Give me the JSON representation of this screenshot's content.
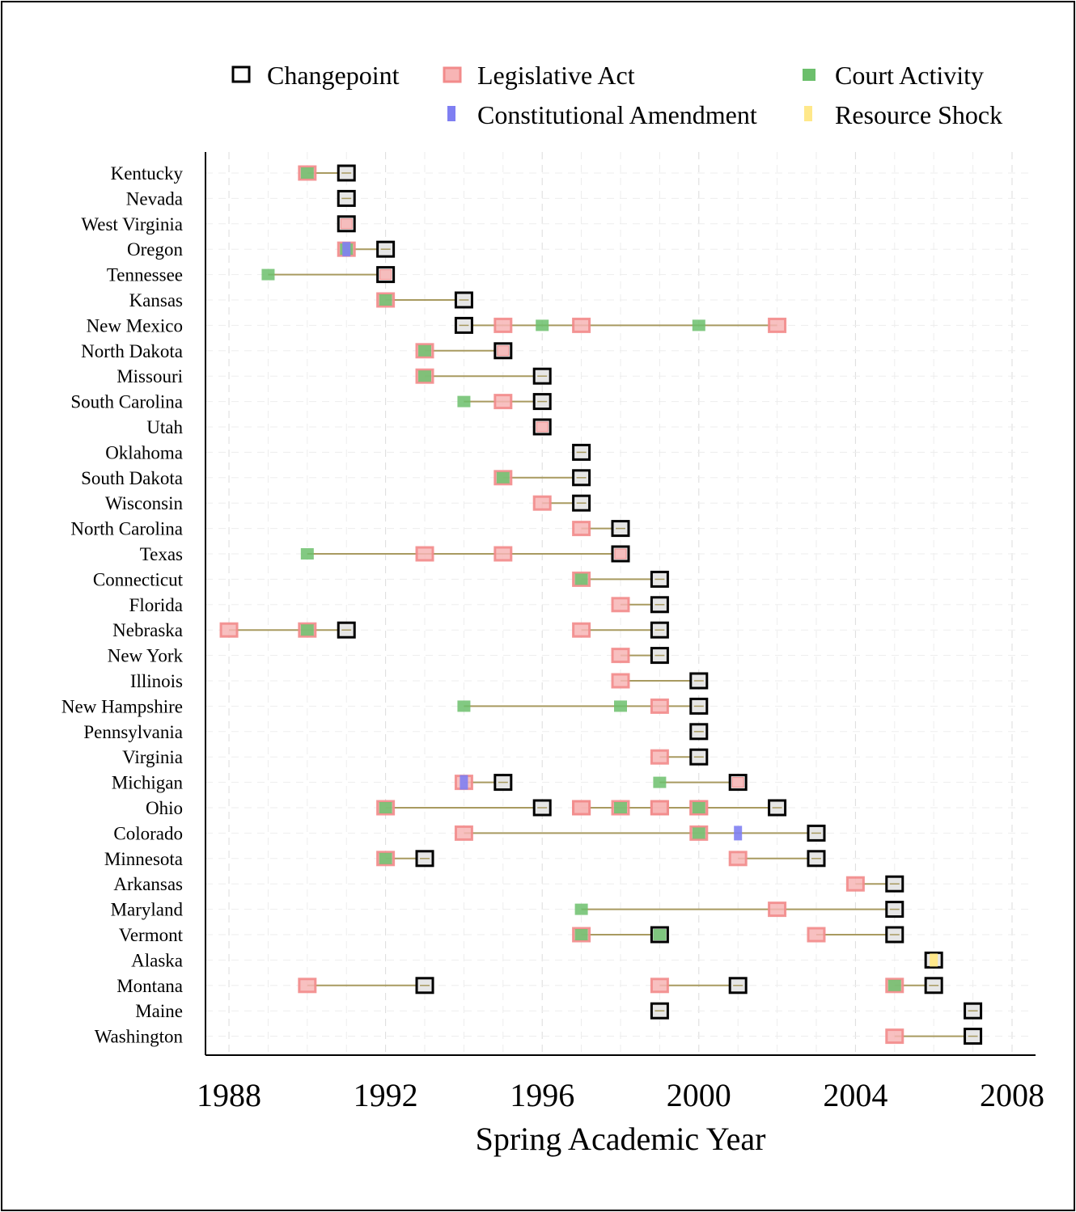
{
  "chart_data": {
    "type": "timeline",
    "xlabel": "Spring Academic Year",
    "ylabel": "",
    "xlim": [
      1987.4,
      2008.6
    ],
    "xticks": [
      1988,
      1992,
      1996,
      2000,
      2004,
      2008
    ],
    "grid": true,
    "legend_position": "top",
    "legend": [
      {
        "key": "changepoint",
        "label": "Changepoint"
      },
      {
        "key": "legislative",
        "label": "Legislative Act"
      },
      {
        "key": "court",
        "label": "Court Activity"
      },
      {
        "key": "amendment",
        "label": "Constitutional Amendment"
      },
      {
        "key": "shock",
        "label": "Resource Shock"
      }
    ],
    "colors": {
      "changepoint_border": "#000000",
      "changepoint_fill": "#e6e6e6",
      "legislative_border": "#f28b8b",
      "legislative_fill": "#f7b5b5",
      "court": "#6cbf6c",
      "amendment": "#7f7ff2",
      "shock": "#ffe88a",
      "connector": "#a89a60"
    },
    "states": [
      {
        "name": "Kentucky",
        "changepoints": [
          1991
        ],
        "legislative": [
          1990
        ],
        "court": [
          1990
        ],
        "amendment": [],
        "shock": []
      },
      {
        "name": "Nevada",
        "changepoints": [
          1991
        ],
        "legislative": [],
        "court": [],
        "amendment": [],
        "shock": []
      },
      {
        "name": "West Virginia",
        "changepoints": [
          1991
        ],
        "legislative": [
          1991
        ],
        "court": [],
        "amendment": [],
        "shock": []
      },
      {
        "name": "Oregon",
        "changepoints": [
          1992
        ],
        "legislative": [
          1991
        ],
        "court": [
          1991
        ],
        "amendment": [
          1991
        ],
        "shock": []
      },
      {
        "name": "Tennessee",
        "changepoints": [
          1992
        ],
        "legislative": [
          1992
        ],
        "court": [
          1989
        ],
        "amendment": [],
        "shock": []
      },
      {
        "name": "Kansas",
        "changepoints": [
          1994
        ],
        "legislative": [
          1992
        ],
        "court": [
          1992
        ],
        "amendment": [],
        "shock": []
      },
      {
        "name": "New Mexico",
        "changepoints": [
          1994
        ],
        "legislative": [
          1995,
          1997,
          2002
        ],
        "court": [
          1996,
          2000
        ],
        "amendment": [],
        "shock": []
      },
      {
        "name": "North Dakota",
        "changepoints": [
          1995
        ],
        "legislative": [
          1993,
          1995
        ],
        "court": [
          1993
        ],
        "amendment": [],
        "shock": []
      },
      {
        "name": "Missouri",
        "changepoints": [
          1996
        ],
        "legislative": [
          1993
        ],
        "court": [
          1993
        ],
        "amendment": [],
        "shock": []
      },
      {
        "name": "South Carolina",
        "changepoints": [
          1996
        ],
        "legislative": [
          1995
        ],
        "court": [
          1994
        ],
        "amendment": [],
        "shock": []
      },
      {
        "name": "Utah",
        "changepoints": [
          1996
        ],
        "legislative": [
          1996
        ],
        "court": [],
        "amendment": [],
        "shock": []
      },
      {
        "name": "Oklahoma",
        "changepoints": [
          1997
        ],
        "legislative": [],
        "court": [],
        "amendment": [],
        "shock": []
      },
      {
        "name": "South Dakota",
        "changepoints": [
          1997
        ],
        "legislative": [
          1995
        ],
        "court": [
          1995
        ],
        "amendment": [],
        "shock": []
      },
      {
        "name": "Wisconsin",
        "changepoints": [
          1997
        ],
        "legislative": [
          1996
        ],
        "court": [],
        "amendment": [],
        "shock": []
      },
      {
        "name": "North Carolina",
        "changepoints": [
          1998
        ],
        "legislative": [
          1997
        ],
        "court": [],
        "amendment": [],
        "shock": []
      },
      {
        "name": "Texas",
        "changepoints": [
          1998
        ],
        "legislative": [
          1993,
          1995,
          1998
        ],
        "court": [
          1990
        ],
        "amendment": [],
        "shock": []
      },
      {
        "name": "Connecticut",
        "changepoints": [
          1999
        ],
        "legislative": [
          1997
        ],
        "court": [
          1997
        ],
        "amendment": [],
        "shock": []
      },
      {
        "name": "Florida",
        "changepoints": [
          1999
        ],
        "legislative": [
          1998
        ],
        "court": [],
        "amendment": [],
        "shock": []
      },
      {
        "name": "Nebraska",
        "changepoints": [
          1991,
          1999
        ],
        "legislative": [
          1988,
          1990,
          1997
        ],
        "court": [
          1990
        ],
        "amendment": [],
        "shock": []
      },
      {
        "name": "New York",
        "changepoints": [
          1999
        ],
        "legislative": [
          1998
        ],
        "court": [],
        "amendment": [],
        "shock": []
      },
      {
        "name": "Illinois",
        "changepoints": [
          2000
        ],
        "legislative": [
          1998
        ],
        "court": [],
        "amendment": [],
        "shock": []
      },
      {
        "name": "New Hampshire",
        "changepoints": [
          2000
        ],
        "legislative": [
          1999
        ],
        "court": [
          1994,
          1998
        ],
        "amendment": [],
        "shock": []
      },
      {
        "name": "Pennsylvania",
        "changepoints": [
          2000
        ],
        "legislative": [],
        "court": [],
        "amendment": [],
        "shock": []
      },
      {
        "name": "Virginia",
        "changepoints": [
          2000
        ],
        "legislative": [
          1999
        ],
        "court": [],
        "amendment": [],
        "shock": []
      },
      {
        "name": "Michigan",
        "changepoints": [
          1995,
          2001
        ],
        "legislative": [
          1994,
          2001
        ],
        "court": [
          1999
        ],
        "amendment": [
          1994
        ],
        "shock": []
      },
      {
        "name": "Ohio",
        "changepoints": [
          1996,
          2002
        ],
        "legislative": [
          1992,
          1997,
          1998,
          1999,
          2000,
          1997,
          1999,
          2000
        ],
        "court": [
          1992,
          1998,
          2000
        ],
        "amendment": [],
        "shock": []
      },
      {
        "name": "Colorado",
        "changepoints": [
          2003
        ],
        "legislative": [
          1994,
          2000
        ],
        "court": [
          2000
        ],
        "amendment": [
          2001
        ],
        "shock": []
      },
      {
        "name": "Minnesota",
        "changepoints": [
          1993,
          2003
        ],
        "legislative": [
          1992,
          2001
        ],
        "court": [
          1992
        ],
        "amendment": [],
        "shock": []
      },
      {
        "name": "Arkansas",
        "changepoints": [
          2005
        ],
        "legislative": [
          2004
        ],
        "court": [],
        "amendment": [],
        "shock": []
      },
      {
        "name": "Maryland",
        "changepoints": [
          2005
        ],
        "legislative": [
          2002
        ],
        "court": [
          1997
        ],
        "amendment": [],
        "shock": []
      },
      {
        "name": "Vermont",
        "changepoints": [
          1999,
          2005
        ],
        "legislative": [
          1997,
          2003
        ],
        "court": [
          1997,
          1999
        ],
        "amendment": [],
        "shock": []
      },
      {
        "name": "Alaska",
        "changepoints": [
          2006
        ],
        "legislative": [],
        "court": [],
        "amendment": [],
        "shock": [
          2006
        ]
      },
      {
        "name": "Montana",
        "changepoints": [
          1993,
          2001,
          2006
        ],
        "legislative": [
          1990,
          1999,
          2005
        ],
        "court": [
          2005
        ],
        "amendment": [],
        "shock": []
      },
      {
        "name": "Maine",
        "changepoints": [
          1999,
          2007
        ],
        "legislative": [],
        "court": [],
        "amendment": [],
        "shock": []
      },
      {
        "name": "Washington",
        "changepoints": [
          2007
        ],
        "legislative": [
          2005
        ],
        "court": [],
        "amendment": [],
        "shock": []
      }
    ]
  }
}
